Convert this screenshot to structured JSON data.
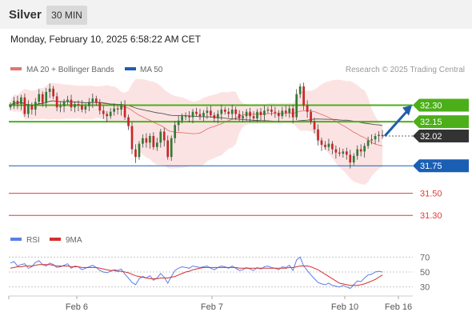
{
  "header": {
    "title": "Silver",
    "interval": "30 MIN",
    "timestamp": "Monday, February 10, 2025 6:58:22 AM CET"
  },
  "legend": {
    "ma20_label": "MA 20 + Bollinger Bands",
    "ma50_label": "MA 50",
    "copyright": "Research © 2025 Trading Central",
    "rsi_label": "RSI",
    "rsi_ma_label": "9MA"
  },
  "colors": {
    "bull": "#2e7d32",
    "bear": "#c62828",
    "bollinger": "#fbd9d9",
    "ma20": "#e57373",
    "ma50": "#555555",
    "resistance": "#4caf1a",
    "support": "#1a5fb4",
    "minor_support": "#e53935",
    "current": "#333333",
    "arrow": "#1f5fa8",
    "rsi": "#5b7fe6",
    "rsi_ma": "#d32f2f"
  },
  "chart_data": [
    {
      "type": "candlestick",
      "title": "Silver",
      "xlabel": "",
      "ylabel": "",
      "x_ticks": [
        "Feb 6",
        "Feb 7",
        "Feb 10",
        "Feb 16"
      ],
      "ylim": [
        31.2,
        32.55
      ],
      "price_levels": [
        {
          "label": "32.30",
          "value": 32.3,
          "kind": "resistance"
        },
        {
          "label": "32.15",
          "value": 32.15,
          "kind": "resistance"
        },
        {
          "label": "32.02",
          "value": 32.02,
          "kind": "current"
        },
        {
          "label": "31.75",
          "value": 31.75,
          "kind": "support"
        },
        {
          "label": "31.50",
          "value": 31.5,
          "kind": "minor_support"
        },
        {
          "label": "31.30",
          "value": 31.3,
          "kind": "minor_support"
        }
      ],
      "forecast": {
        "from": 32.02,
        "to": 32.3
      },
      "close": [
        32.3,
        32.34,
        32.31,
        32.37,
        32.22,
        32.3,
        32.26,
        32.33,
        32.4,
        32.32,
        32.42,
        32.45,
        32.38,
        32.28,
        32.29,
        32.33,
        32.35,
        32.28,
        32.31,
        32.3,
        32.26,
        32.29,
        32.33,
        32.36,
        32.32,
        32.25,
        32.22,
        32.2,
        32.24,
        32.27,
        32.26,
        32.3,
        32.19,
        32.11,
        31.9,
        31.83,
        31.95,
        32.0,
        31.96,
        32.02,
        31.92,
        31.96,
        32.06,
        31.98,
        31.83,
        32.0,
        32.12,
        32.16,
        32.2,
        32.2,
        32.19,
        32.24,
        32.22,
        32.2,
        32.23,
        32.25,
        32.21,
        32.18,
        32.22,
        32.26,
        32.24,
        32.22,
        32.26,
        32.22,
        32.18,
        32.2,
        32.24,
        32.2,
        32.18,
        32.24,
        32.21,
        32.25,
        32.26,
        32.24,
        32.23,
        32.2,
        32.25,
        32.23,
        32.27,
        32.19,
        32.4,
        32.47,
        32.3,
        32.24,
        32.15,
        32.08,
        31.98,
        31.94,
        31.92,
        31.95,
        31.9,
        31.87,
        31.86,
        31.88,
        31.85,
        31.78,
        31.84,
        31.9,
        31.88,
        31.93,
        31.98,
        31.99,
        32.02,
        32.03,
        32.02
      ],
      "rsi": {
        "levels": [
          70,
          50,
          30
        ],
        "values": [
          62,
          64,
          58,
          60,
          61,
          55,
          57,
          63,
          65,
          60,
          58,
          62,
          60,
          56,
          57,
          59,
          61,
          55,
          58,
          57,
          53,
          55,
          57,
          59,
          56,
          52,
          50,
          49,
          51,
          53,
          52,
          54,
          47,
          42,
          36,
          33,
          41,
          44,
          42,
          45,
          39,
          42,
          48,
          43,
          35,
          44,
          52,
          55,
          57,
          56,
          55,
          58,
          57,
          56,
          57,
          58,
          55,
          53,
          56,
          58,
          57,
          55,
          58,
          55,
          52,
          53,
          56,
          54,
          52,
          56,
          54,
          57,
          58,
          56,
          55,
          53,
          57,
          56,
          59,
          52,
          66,
          70,
          58,
          52,
          46,
          41,
          36,
          34,
          33,
          35,
          32,
          31,
          30,
          32,
          30,
          28,
          33,
          38,
          37,
          42,
          46,
          47,
          50,
          51,
          50
        ],
        "ma": [
          55,
          56,
          57,
          57,
          58,
          58,
          58,
          59,
          60,
          60,
          60,
          60,
          59,
          58,
          58,
          58,
          58,
          57,
          57,
          57,
          56,
          56,
          56,
          56,
          56,
          55,
          54,
          53,
          52,
          52,
          51,
          51,
          50,
          49,
          47,
          45,
          44,
          43,
          42,
          41,
          41,
          41,
          42,
          42,
          42,
          43,
          44,
          46,
          48,
          50,
          51,
          53,
          54,
          55,
          56,
          56,
          56,
          56,
          56,
          56,
          56,
          56,
          56,
          56,
          55,
          55,
          55,
          55,
          55,
          55,
          55,
          55,
          55,
          55,
          55,
          55,
          55,
          55,
          56,
          56,
          57,
          58,
          58,
          58,
          57,
          55,
          53,
          50,
          47,
          44,
          41,
          38,
          35,
          34,
          33,
          32,
          32,
          32,
          33,
          34,
          36,
          38,
          40,
          43,
          46
        ]
      }
    }
  ]
}
